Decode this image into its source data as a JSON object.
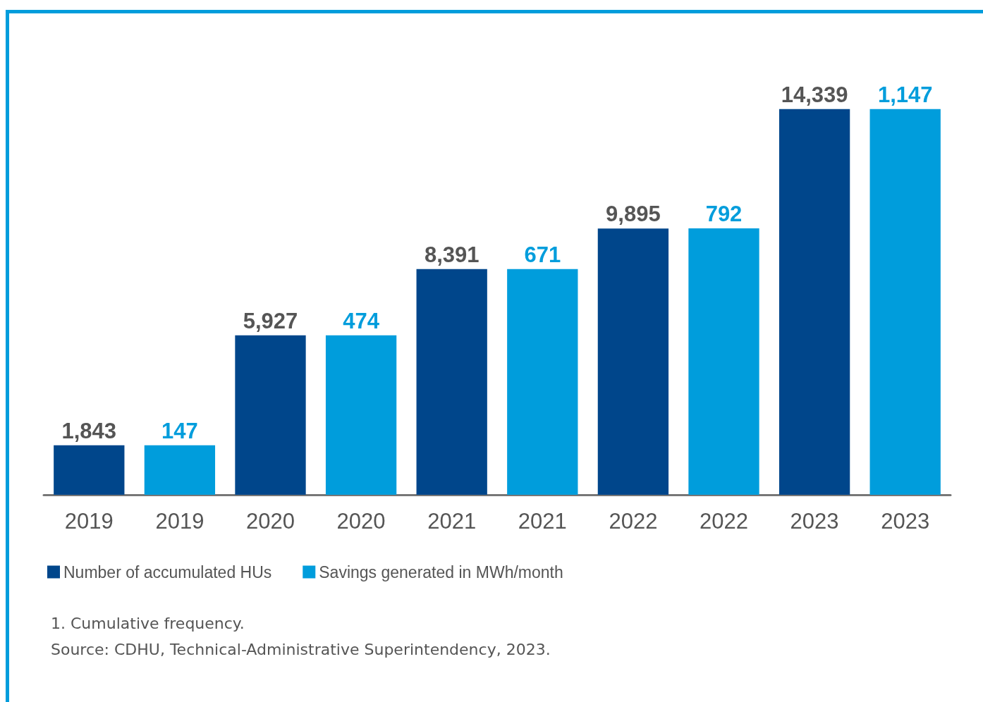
{
  "chart_data": {
    "type": "bar",
    "categories": [
      "2019",
      "2019",
      "2020",
      "2020",
      "2021",
      "2021",
      "2022",
      "2022",
      "2023",
      "2023"
    ],
    "series": [
      {
        "name": "Number of accumulated HUs",
        "color": "#00468b",
        "values": [
          1843,
          null,
          5927,
          null,
          8391,
          null,
          9895,
          null,
          14339,
          null
        ],
        "value_labels": [
          "1,843",
          null,
          "5,927",
          null,
          "8,391",
          null,
          "9,895",
          null,
          "14,339",
          null
        ]
      },
      {
        "name": "Savings generated in MWh/month",
        "color": "#009ddc",
        "axis": "y2",
        "values": [
          null,
          147,
          null,
          474,
          null,
          671,
          null,
          792,
          null,
          1147
        ],
        "value_labels": [
          null,
          "147",
          null,
          "474",
          null,
          "671",
          null,
          "792",
          null,
          "1,147"
        ]
      }
    ],
    "legend": "bottom left",
    "annotations": [
      "1. Cumulative frequency.",
      "Source: CDHU, Technical-Administrative Superintendency, 2023."
    ]
  }
}
